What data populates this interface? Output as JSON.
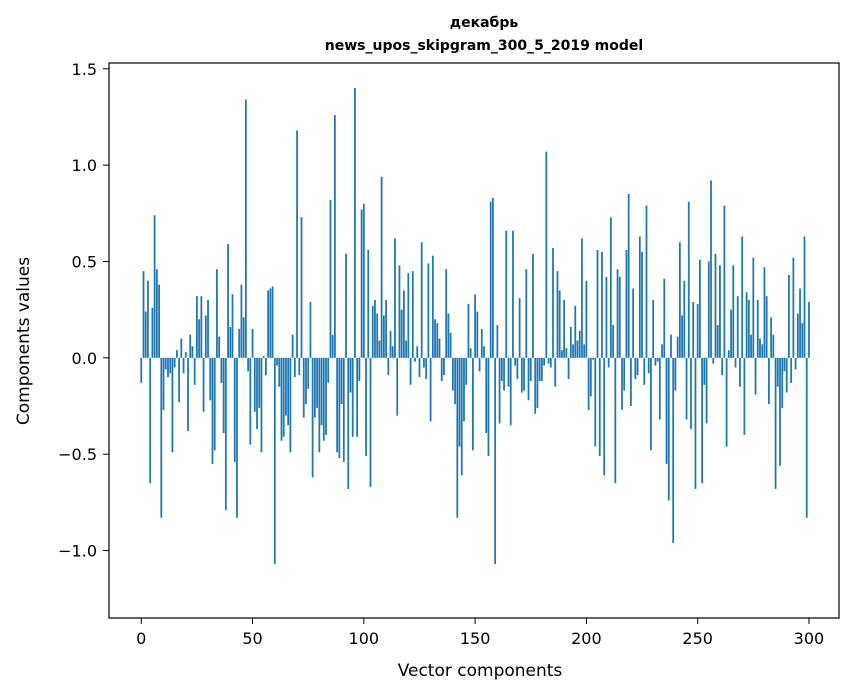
{
  "chart_data": {
    "type": "bar",
    "title": "декабрь",
    "subtitle": "news_upos_skipgram_300_5_2019 model",
    "xlabel": "Vector components",
    "ylabel": "Components values",
    "xlim": [
      -14.5,
      313.5
    ],
    "ylim": [
      -1.35,
      1.53
    ],
    "x_ticks": [
      0,
      50,
      100,
      150,
      200,
      250,
      300
    ],
    "x_tick_labels": [
      "0",
      "50",
      "100",
      "150",
      "200",
      "250",
      "300"
    ],
    "y_ticks": [
      -1.0,
      -0.5,
      0.0,
      0.5,
      1.0,
      1.5
    ],
    "y_tick_labels": [
      "−1.0",
      "−0.5",
      "0.0",
      "0.5",
      "1.0",
      "1.5"
    ],
    "bar_color": "#1f77b4",
    "grid": false,
    "legend": "none",
    "values": [
      -0.13,
      0.45,
      0.24,
      0.4,
      -0.65,
      0.26,
      0.74,
      0.46,
      0.38,
      -0.83,
      -0.27,
      -0.06,
      -0.1,
      -0.08,
      -0.49,
      -0.05,
      0.04,
      -0.23,
      0.1,
      -0.08,
      0.03,
      -0.38,
      0.12,
      0.06,
      -0.14,
      0.32,
      0.2,
      0.32,
      -0.28,
      0.22,
      0.3,
      -0.22,
      -0.55,
      -0.48,
      0.46,
      0.11,
      -0.13,
      -0.39,
      -0.79,
      0.59,
      0.16,
      0.33,
      -0.54,
      -0.83,
      0.15,
      0.38,
      0.21,
      1.34,
      -0.07,
      -0.45,
      0.15,
      -0.28,
      -0.37,
      -0.26,
      -0.49,
      0.01,
      -0.09,
      0.35,
      0.36,
      0.37,
      -1.07,
      -0.04,
      -0.15,
      -0.43,
      -0.41,
      -0.3,
      -0.35,
      -0.49,
      0.12,
      -0.1,
      1.18,
      -0.09,
      0.73,
      -0.31,
      -0.24,
      -0.16,
      0.29,
      -0.62,
      -0.31,
      -0.26,
      -0.49,
      -0.35,
      -0.43,
      -0.4,
      -0.13,
      0.82,
      0.12,
      1.26,
      -0.49,
      -0.52,
      -0.24,
      -0.54,
      0.54,
      -0.68,
      -0.18,
      -0.41,
      1.4,
      -0.41,
      -0.12,
      0.77,
      0.8,
      -0.51,
      0.56,
      -0.67,
      0.27,
      0.3,
      0.23,
      0.09,
      0.94,
      0.22,
      0.3,
      -0.09,
      0.14,
      0.06,
      0.62,
      -0.3,
      0.48,
      0.25,
      0.35,
      0.09,
      0.44,
      -0.14,
      0.45,
      -0.02,
      0.06,
      -0.1,
      0.6,
      -0.05,
      -0.11,
      0.49,
      -0.33,
      0.53,
      0.2,
      0.18,
      0.1,
      -0.12,
      -0.09,
      0.46,
      0.23,
      0.13,
      -0.17,
      -0.24,
      -0.83,
      -0.46,
      -0.61,
      -0.33,
      -0.14,
      0.28,
      0.05,
      -0.48,
      0.33,
      0.24,
      -0.07,
      0.15,
      0.06,
      -0.39,
      -0.51,
      0.81,
      0.83,
      -1.07,
      0.17,
      -0.34,
      -0.12,
      -0.17,
      0.66,
      -0.15,
      -0.35,
      0.66,
      -0.04,
      -0.11,
      0.31,
      -0.18,
      -0.17,
      0.46,
      -0.22,
      -0.12,
      0.54,
      -0.29,
      -0.26,
      -0.12,
      -0.12,
      -0.04,
      1.07,
      -0.03,
      -0.05,
      0.57,
      -0.15,
      0.45,
      0.35,
      0.04,
      0.3,
      0.05,
      -0.11,
      0.16,
      0.07,
      0.27,
      0.09,
      0.14,
      0.62,
      0.07,
      0.4,
      -0.27,
      -0.2,
      -0.01,
      -0.46,
      0.56,
      -0.51,
      0.55,
      -0.61,
      0.42,
      -0.05,
      0.73,
      0.17,
      -0.65,
      0.46,
      0.42,
      -0.27,
      -0.17,
      0.56,
      0.85,
      -0.25,
      0.36,
      -0.11,
      -0.09,
      0.63,
      0.55,
      -0.14,
      0.79,
      -0.08,
      -0.48,
      0.3,
      -0.04,
      -0.02,
      -0.32,
      0.07,
      0.41,
      -0.55,
      -0.74,
      0.12,
      -0.96,
      -0.17,
      0.11,
      0.6,
      0.22,
      0.4,
      -0.32,
      0.81,
      -0.37,
      0.29,
      -0.68,
      0.28,
      0.51,
      -0.65,
      -0.14,
      -0.34,
      0.5,
      0.92,
      -0.03,
      0.54,
      0.17,
      0.48,
      -0.09,
      0.79,
      -0.46,
      0.04,
      0.25,
      0.48,
      -0.05,
      0.32,
      -0.15,
      0.63,
      -0.4,
      0.34,
      0.3,
      0.12,
      0.52,
      -0.19,
      0.3,
      0.1,
      0.07,
      0.47,
      0.32,
      -0.24,
      0.21,
      0.12,
      -0.68,
      -0.15,
      -0.56,
      -0.26,
      -0.07,
      -0.18,
      0.43,
      -0.13,
      0.52,
      -0.06,
      0.23,
      0.36,
      0.18,
      0.63,
      -0.83,
      0.29
    ]
  }
}
